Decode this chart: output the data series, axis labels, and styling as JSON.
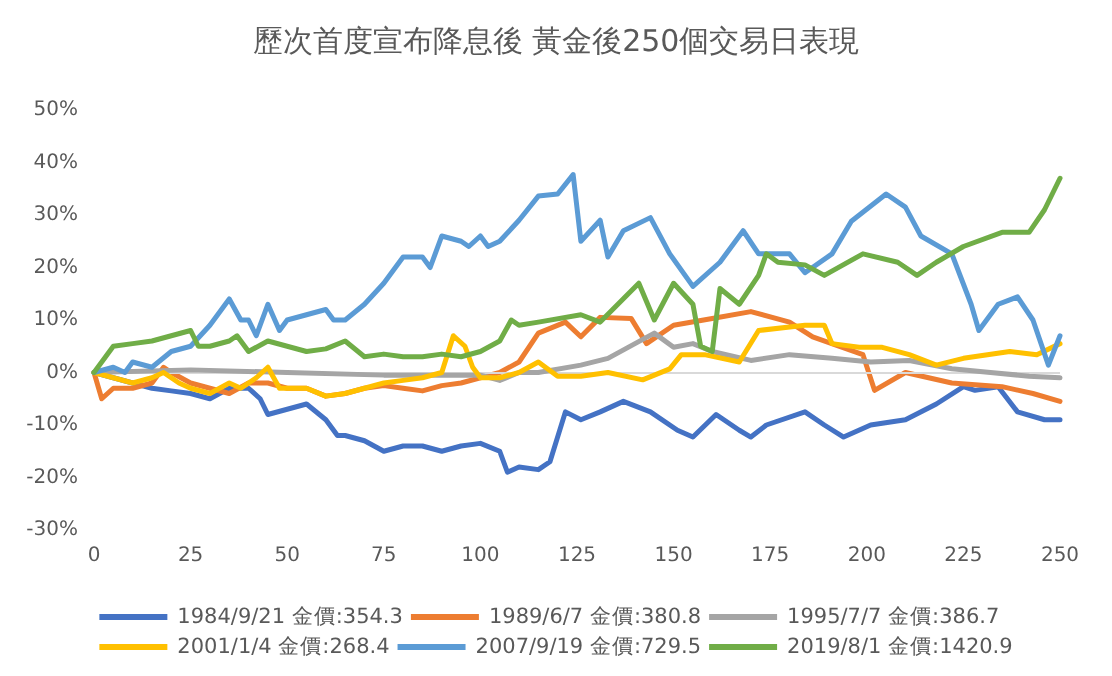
{
  "chart_data": {
    "type": "line",
    "title": "歷次首度宣布降息後 黃金後250個交易日表現",
    "xlim": [
      0,
      250
    ],
    "xticks": [
      0,
      25,
      50,
      75,
      100,
      125,
      150,
      175,
      200,
      225,
      250
    ],
    "ylim": [
      -30,
      50
    ],
    "yticks": [
      {
        "value": -30,
        "label": "-30%"
      },
      {
        "value": -20,
        "label": "-20%"
      },
      {
        "value": -10,
        "label": "-10%"
      },
      {
        "value": 0,
        "label": "0%"
      },
      {
        "value": 10,
        "label": "10%"
      },
      {
        "value": 20,
        "label": "20%"
      },
      {
        "value": 30,
        "label": "30%"
      },
      {
        "value": 40,
        "label": "40%"
      },
      {
        "value": 50,
        "label": "50%"
      }
    ],
    "grid": false,
    "legend": "bottom",
    "marker": "none",
    "line_style": "solid",
    "ref_lines": [
      {
        "axis": "y",
        "value": 0,
        "color": "#d9d9d9"
      }
    ],
    "series": [
      {
        "name": "1984/9/21 金價:354.3",
        "color": "#4472c4",
        "x": [
          0,
          5,
          10,
          15,
          20,
          25,
          30,
          35,
          40,
          43,
          45,
          50,
          55,
          60,
          63,
          65,
          70,
          75,
          80,
          85,
          90,
          95,
          100,
          105,
          107,
          110,
          115,
          118,
          122,
          126,
          131,
          137,
          144,
          151,
          155,
          161,
          167,
          170,
          174,
          184,
          189,
          194,
          201,
          210,
          218,
          225,
          228,
          234,
          239,
          246,
          250
        ],
        "values": [
          0,
          -1,
          -2,
          -3,
          -3.5,
          -4,
          -5,
          -3,
          -3,
          -5,
          -8,
          -7,
          -6,
          -9,
          -12,
          -12,
          -13,
          -15,
          -14,
          -14,
          -15,
          -14,
          -13.5,
          -15,
          -19,
          -18,
          -18.5,
          -17,
          -7.5,
          -9,
          -7.5,
          -5.5,
          -7.5,
          -11,
          -12.3,
          -8,
          -11,
          -12.3,
          -10,
          -7.5,
          -10,
          -12.3,
          -10,
          -9,
          -6,
          -2.7,
          -3.4,
          -2.7,
          -7.5,
          -9,
          -9
        ]
      },
      {
        "name": "1989/6/7 金價:380.8",
        "color": "#ed7d31",
        "x": [
          0,
          2,
          5,
          10,
          15,
          18,
          20,
          25,
          30,
          35,
          40,
          45,
          50,
          55,
          60,
          65,
          70,
          75,
          80,
          85,
          90,
          95,
          100,
          105,
          110,
          115,
          122,
          126,
          131,
          139,
          143,
          150,
          160,
          170,
          180,
          186,
          199,
          202,
          210,
          222,
          235,
          243,
          250
        ],
        "values": [
          0,
          -5,
          -3,
          -3,
          -2,
          1,
          0,
          -2,
          -3,
          -4,
          -2,
          -2,
          -3,
          -3,
          -4.5,
          -4,
          -3,
          -2.5,
          -3,
          -3.5,
          -2.5,
          -2,
          -1,
          0,
          2,
          7.5,
          9.6,
          6.8,
          10.5,
          10.3,
          5.5,
          9,
          10.3,
          11.6,
          9.6,
          6.8,
          3.4,
          -3.4,
          0,
          -2,
          -2.7,
          -4,
          -5.5
        ]
      },
      {
        "name": "1995/7/7 金價:386.7",
        "color": "#a5a5a5",
        "x": [
          0,
          25,
          50,
          75,
          100,
          105,
          110,
          115,
          126,
          133,
          145,
          150,
          155,
          160,
          170,
          180,
          191,
          201,
          211,
          222,
          232,
          242,
          250
        ],
        "values": [
          0,
          0.5,
          0,
          -0.5,
          -0.5,
          -1.5,
          0,
          0,
          1.4,
          2.7,
          7.5,
          4.8,
          5.5,
          4,
          2.3,
          3.4,
          2.7,
          2,
          2.3,
          0.7,
          0,
          -0.7,
          -1
        ]
      },
      {
        "name": "2001/1/4 金價:268.4",
        "color": "#ffc000",
        "x": [
          0,
          5,
          10,
          15,
          18,
          22,
          25,
          30,
          35,
          38,
          42,
          45,
          48,
          50,
          55,
          60,
          65,
          70,
          75,
          80,
          85,
          90,
          93,
          96,
          98,
          100,
          105,
          110,
          115,
          120,
          126,
          133,
          142,
          149,
          152,
          158,
          167,
          172,
          184,
          189,
          191,
          198,
          204,
          211,
          218,
          225,
          237,
          244,
          250
        ],
        "values": [
          0,
          -1,
          -2,
          -1,
          0,
          -2,
          -3,
          -4,
          -2,
          -3,
          -1,
          1,
          -3,
          -3,
          -3,
          -4.5,
          -4,
          -3,
          -2,
          -1.5,
          -1,
          0,
          7,
          5,
          1,
          -1,
          -1,
          0,
          2,
          -0.7,
          -0.7,
          0,
          -1.4,
          0.7,
          3.4,
          3.4,
          2,
          8,
          9,
          9,
          5.5,
          4.8,
          4.8,
          3.4,
          1.4,
          2.7,
          4,
          3.4,
          5.5
        ]
      },
      {
        "name": "2007/9/19 金價:729.5",
        "color": "#5b9bd5",
        "x": [
          0,
          5,
          8,
          10,
          15,
          20,
          25,
          30,
          35,
          38,
          40,
          42,
          45,
          48,
          50,
          55,
          60,
          62,
          65,
          70,
          75,
          80,
          85,
          87,
          90,
          95,
          97,
          100,
          102,
          105,
          110,
          115,
          120,
          124,
          126,
          131,
          133,
          137,
          144,
          149,
          155,
          162,
          168,
          172,
          180,
          184,
          191,
          196,
          205,
          210,
          214,
          222,
          227,
          229,
          234,
          239,
          243,
          247,
          250
        ],
        "values": [
          0,
          1,
          0,
          2,
          1,
          4,
          5,
          9,
          14,
          10,
          10,
          7,
          13,
          8,
          10,
          11,
          12,
          10,
          10,
          13,
          17,
          22,
          22,
          20,
          26,
          25,
          24,
          26,
          24,
          25,
          29,
          33.6,
          34,
          37.7,
          25,
          29,
          22,
          27,
          29.5,
          22.6,
          16.4,
          21,
          27,
          22.6,
          22.6,
          19,
          22.6,
          28.8,
          34,
          31.5,
          26,
          22.6,
          13,
          8,
          13,
          14.4,
          10,
          1.4,
          7
        ]
      },
      {
        "name": "2019/8/1 金價:1420.9",
        "color": "#70ad47",
        "x": [
          0,
          3,
          5,
          10,
          15,
          20,
          25,
          27,
          30,
          35,
          37,
          40,
          45,
          50,
          55,
          60,
          65,
          70,
          75,
          80,
          85,
          90,
          95,
          100,
          105,
          108,
          110,
          115,
          126,
          131,
          141,
          145,
          150,
          155,
          157,
          160,
          162,
          167,
          172,
          174,
          177,
          184,
          189,
          199,
          208,
          213,
          218,
          225,
          235,
          242,
          246,
          250
        ],
        "values": [
          0,
          3,
          5,
          5.5,
          6,
          7,
          8,
          5,
          5,
          6,
          7,
          4,
          6,
          5,
          4,
          4.5,
          6,
          3,
          3.5,
          3,
          3,
          3.5,
          3,
          4,
          6,
          10,
          9,
          9.6,
          11,
          9.6,
          17,
          10,
          17,
          13,
          5,
          4,
          16,
          13,
          18.5,
          22.6,
          21,
          20.5,
          18.5,
          22.6,
          21,
          18.5,
          21,
          24,
          26.7,
          26.7,
          31,
          37
        ]
      }
    ]
  }
}
